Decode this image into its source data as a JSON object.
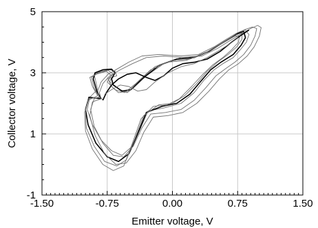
{
  "chart_data": {
    "type": "line",
    "title": "",
    "xlabel": "Emitter voltage, V",
    "ylabel": "Collector voltage, V",
    "xlim": [
      -1.5,
      1.5
    ],
    "ylim": [
      -1,
      5
    ],
    "x_ticks": [
      -1.5,
      -0.75,
      0.0,
      0.75,
      1.5
    ],
    "x_tick_labels": [
      "-1.50",
      "-0.75",
      "0.00",
      "0.75",
      "1.50"
    ],
    "y_ticks": [
      -1,
      1,
      3,
      5
    ],
    "y_tick_labels": [
      "-1",
      "1",
      "3",
      "5"
    ],
    "grid": true,
    "legend": "none",
    "series_style": {
      "color": "#000000",
      "light_color": "#6e6e6e"
    },
    "series": [
      {
        "values": [
          [
            -0.8,
            2.1
          ],
          [
            -0.85,
            2.3
          ],
          [
            -0.88,
            2.7
          ],
          [
            -0.9,
            2.95
          ],
          [
            -0.82,
            3.05
          ],
          [
            -0.72,
            3.1
          ],
          [
            -0.66,
            3.05
          ],
          [
            -0.64,
            2.9
          ],
          [
            -0.7,
            2.85
          ],
          [
            -0.72,
            2.7
          ],
          [
            -0.6,
            2.45
          ],
          [
            -0.52,
            2.35
          ],
          [
            -0.45,
            2.5
          ],
          [
            -0.3,
            2.9
          ],
          [
            -0.1,
            3.3
          ],
          [
            0.1,
            3.5
          ],
          [
            0.3,
            3.55
          ],
          [
            0.45,
            3.75
          ],
          [
            0.58,
            4.0
          ],
          [
            0.7,
            4.2
          ],
          [
            0.78,
            4.35
          ],
          [
            0.84,
            4.4
          ],
          [
            0.88,
            4.25
          ],
          [
            0.85,
            4.0
          ],
          [
            0.78,
            3.75
          ],
          [
            0.7,
            3.5
          ],
          [
            0.58,
            3.3
          ],
          [
            0.48,
            3.1
          ],
          [
            0.36,
            2.75
          ],
          [
            0.25,
            2.35
          ],
          [
            0.1,
            2.0
          ],
          [
            -0.1,
            1.85
          ],
          [
            -0.28,
            1.75
          ],
          [
            -0.38,
            1.1
          ],
          [
            -0.48,
            0.55
          ],
          [
            -0.58,
            0.3
          ],
          [
            -0.7,
            0.45
          ],
          [
            -0.82,
            0.8
          ],
          [
            -0.92,
            1.3
          ],
          [
            -0.98,
            1.8
          ],
          [
            -0.95,
            2.2
          ],
          [
            -0.88,
            2.4
          ],
          [
            -0.8,
            2.1
          ]
        ]
      },
      {
        "values": [
          [
            -0.82,
            2.15
          ],
          [
            -0.87,
            2.4
          ],
          [
            -0.91,
            2.8
          ],
          [
            -0.89,
            3.0
          ],
          [
            -0.8,
            3.1
          ],
          [
            -0.7,
            3.12
          ],
          [
            -0.66,
            3.0
          ],
          [
            -0.7,
            2.8
          ],
          [
            -0.68,
            2.6
          ],
          [
            -0.58,
            2.4
          ],
          [
            -0.48,
            2.45
          ],
          [
            -0.35,
            2.8
          ],
          [
            -0.15,
            3.25
          ],
          [
            0.05,
            3.45
          ],
          [
            0.25,
            3.5
          ],
          [
            0.42,
            3.7
          ],
          [
            0.56,
            3.95
          ],
          [
            0.68,
            4.15
          ],
          [
            0.76,
            4.3
          ],
          [
            0.82,
            4.35
          ],
          [
            0.84,
            4.15
          ],
          [
            0.79,
            3.9
          ],
          [
            0.7,
            3.6
          ],
          [
            0.56,
            3.35
          ],
          [
            0.44,
            3.1
          ],
          [
            0.32,
            2.7
          ],
          [
            0.2,
            2.3
          ],
          [
            0.05,
            2.0
          ],
          [
            -0.12,
            1.9
          ],
          [
            -0.3,
            1.7
          ],
          [
            -0.4,
            1.0
          ],
          [
            -0.5,
            0.35
          ],
          [
            -0.62,
            0.1
          ],
          [
            -0.75,
            0.25
          ],
          [
            -0.88,
            0.7
          ],
          [
            -0.97,
            1.3
          ],
          [
            -1.0,
            1.8
          ],
          [
            -0.96,
            2.2
          ],
          [
            -0.82,
            2.15
          ]
        ]
      },
      {
        "values": [
          [
            -0.84,
            2.2
          ],
          [
            -0.9,
            2.5
          ],
          [
            -0.93,
            2.85
          ],
          [
            -0.85,
            3.0
          ],
          [
            -0.74,
            3.08
          ],
          [
            -0.68,
            2.95
          ],
          [
            -0.74,
            2.8
          ],
          [
            -0.7,
            2.55
          ],
          [
            -0.62,
            2.35
          ],
          [
            -0.5,
            2.4
          ],
          [
            -0.38,
            2.75
          ],
          [
            -0.2,
            3.2
          ],
          [
            0.0,
            3.4
          ],
          [
            0.2,
            3.45
          ],
          [
            0.38,
            3.65
          ],
          [
            0.52,
            3.9
          ],
          [
            0.65,
            4.1
          ],
          [
            0.74,
            4.25
          ],
          [
            0.8,
            4.3
          ],
          [
            0.8,
            4.1
          ],
          [
            0.74,
            3.85
          ],
          [
            0.64,
            3.6
          ],
          [
            0.52,
            3.35
          ],
          [
            0.4,
            3.05
          ],
          [
            0.28,
            2.65
          ],
          [
            0.14,
            2.25
          ],
          [
            0.0,
            2.0
          ],
          [
            -0.16,
            1.95
          ],
          [
            -0.33,
            1.6
          ],
          [
            -0.43,
            0.85
          ],
          [
            -0.53,
            0.15
          ],
          [
            -0.64,
            -0.05
          ],
          [
            -0.78,
            0.1
          ],
          [
            -0.9,
            0.6
          ],
          [
            -0.99,
            1.2
          ],
          [
            -1.0,
            1.75
          ],
          [
            -0.97,
            2.15
          ],
          [
            -0.84,
            2.2
          ]
        ]
      },
      {
        "values": [
          [
            -0.86,
            2.25
          ],
          [
            -0.92,
            2.55
          ],
          [
            -0.95,
            2.85
          ],
          [
            -0.88,
            2.95
          ],
          [
            -0.76,
            3.05
          ],
          [
            -0.7,
            2.9
          ],
          [
            -0.75,
            2.7
          ],
          [
            -0.66,
            2.45
          ],
          [
            -0.55,
            2.35
          ],
          [
            -0.42,
            2.65
          ],
          [
            -0.25,
            3.1
          ],
          [
            -0.05,
            3.35
          ],
          [
            0.15,
            3.4
          ],
          [
            0.35,
            3.6
          ],
          [
            0.5,
            3.85
          ],
          [
            0.62,
            4.05
          ],
          [
            0.72,
            4.2
          ],
          [
            0.77,
            4.2
          ],
          [
            0.76,
            4.0
          ],
          [
            0.68,
            3.75
          ],
          [
            0.58,
            3.5
          ],
          [
            0.46,
            3.25
          ],
          [
            0.35,
            2.95
          ],
          [
            0.22,
            2.55
          ],
          [
            0.08,
            2.15
          ],
          [
            -0.06,
            1.95
          ],
          [
            -0.22,
            1.9
          ],
          [
            -0.36,
            1.5
          ],
          [
            -0.46,
            0.7
          ],
          [
            -0.56,
            -0.05
          ],
          [
            -0.68,
            -0.2
          ],
          [
            -0.8,
            0.0
          ],
          [
            -0.92,
            0.5
          ],
          [
            -1.0,
            1.1
          ],
          [
            -1.01,
            1.7
          ],
          [
            -0.97,
            2.1
          ],
          [
            -0.86,
            2.25
          ]
        ]
      },
      {
        "values": [
          [
            -0.84,
            2.2
          ],
          [
            -0.86,
            2.4
          ],
          [
            -0.82,
            2.7
          ],
          [
            -0.74,
            2.95
          ],
          [
            -0.62,
            3.15
          ],
          [
            -0.5,
            3.35
          ],
          [
            -0.35,
            3.55
          ],
          [
            -0.15,
            3.6
          ],
          [
            0.1,
            3.55
          ],
          [
            0.3,
            3.6
          ],
          [
            0.48,
            3.85
          ],
          [
            0.62,
            4.1
          ],
          [
            0.74,
            4.3
          ],
          [
            0.84,
            4.42
          ],
          [
            0.92,
            4.5
          ],
          [
            0.97,
            4.45
          ],
          [
            0.95,
            4.2
          ],
          [
            0.9,
            3.9
          ],
          [
            0.82,
            3.6
          ],
          [
            0.72,
            3.35
          ],
          [
            0.62,
            3.15
          ],
          [
            0.5,
            2.9
          ],
          [
            0.38,
            2.5
          ],
          [
            0.25,
            2.1
          ],
          [
            0.1,
            1.8
          ],
          [
            -0.08,
            1.7
          ],
          [
            -0.25,
            1.65
          ],
          [
            -0.35,
            1.2
          ],
          [
            -0.45,
            0.6
          ],
          [
            -0.56,
            0.25
          ],
          [
            -0.68,
            0.3
          ],
          [
            -0.8,
            0.7
          ],
          [
            -0.9,
            1.25
          ],
          [
            -0.94,
            1.8
          ],
          [
            -0.9,
            2.15
          ],
          [
            -0.84,
            2.2
          ]
        ]
      },
      {
        "values": [
          [
            -0.82,
            2.15
          ],
          [
            -0.84,
            2.35
          ],
          [
            -0.8,
            2.65
          ],
          [
            -0.72,
            2.9
          ],
          [
            -0.6,
            3.1
          ],
          [
            -0.46,
            3.3
          ],
          [
            -0.3,
            3.5
          ],
          [
            -0.1,
            3.55
          ],
          [
            0.12,
            3.5
          ],
          [
            0.34,
            3.55
          ],
          [
            0.52,
            3.8
          ],
          [
            0.66,
            4.05
          ],
          [
            0.78,
            4.25
          ],
          [
            0.9,
            4.45
          ],
          [
            0.98,
            4.55
          ],
          [
            1.02,
            4.48
          ],
          [
            1.0,
            4.2
          ],
          [
            0.94,
            3.85
          ],
          [
            0.86,
            3.55
          ],
          [
            0.76,
            3.3
          ],
          [
            0.65,
            3.1
          ],
          [
            0.54,
            2.8
          ],
          [
            0.42,
            2.4
          ],
          [
            0.28,
            2.0
          ],
          [
            0.12,
            1.7
          ],
          [
            -0.05,
            1.6
          ],
          [
            -0.22,
            1.55
          ],
          [
            -0.33,
            1.05
          ],
          [
            -0.42,
            0.45
          ],
          [
            -0.53,
            0.05
          ],
          [
            -0.65,
            0.0
          ],
          [
            -0.78,
            0.35
          ],
          [
            -0.89,
            0.95
          ],
          [
            -0.95,
            1.6
          ],
          [
            -0.92,
            2.05
          ],
          [
            -0.82,
            2.15
          ]
        ]
      },
      {
        "values": [
          [
            -0.8,
            2.1
          ],
          [
            -0.76,
            2.35
          ],
          [
            -0.7,
            2.6
          ],
          [
            -0.62,
            2.8
          ],
          [
            -0.52,
            2.95
          ],
          [
            -0.42,
            3.0
          ],
          [
            -0.3,
            2.85
          ],
          [
            -0.2,
            2.75
          ],
          [
            -0.1,
            2.9
          ],
          [
            0.0,
            3.15
          ],
          [
            0.12,
            3.3
          ],
          [
            0.26,
            3.35
          ],
          [
            0.4,
            3.45
          ],
          [
            0.55,
            3.7
          ],
          [
            0.68,
            4.0
          ],
          [
            0.8,
            4.25
          ],
          [
            0.88,
            4.4
          ]
        ]
      },
      {
        "values": [
          [
            -0.78,
            2.3
          ],
          [
            -0.7,
            2.45
          ],
          [
            -0.6,
            2.6
          ],
          [
            -0.5,
            2.55
          ],
          [
            -0.4,
            2.4
          ],
          [
            -0.3,
            2.45
          ],
          [
            -0.2,
            2.7
          ],
          [
            -0.05,
            3.0
          ],
          [
            0.1,
            3.2
          ],
          [
            0.25,
            3.3
          ],
          [
            0.4,
            3.5
          ],
          [
            0.55,
            3.75
          ],
          [
            0.66,
            3.95
          ],
          [
            0.76,
            4.15
          ]
        ]
      }
    ]
  }
}
